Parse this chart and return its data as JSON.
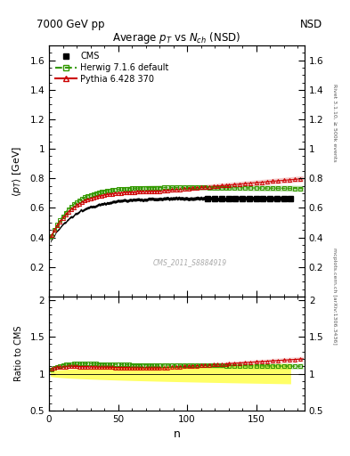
{
  "title_top_left": "7000 GeV pp",
  "title_top_right": "NSD",
  "main_title": "Average p$_T$ vs N$_{ch}$ (NSD)",
  "xlabel": "n",
  "ylabel_main": "⟨p$_T$⟩ [GeV]",
  "ylabel_ratio": "Ratio to CMS",
  "right_label_top": "Rivet 3.1.10, ≥ 500k events",
  "right_label_bottom": "mcplots.cern.ch [arXiv:1306.3436]",
  "watermark": "CMS_2011_S8884919",
  "ylim_main": [
    0.0,
    1.7
  ],
  "ylim_ratio": [
    0.5,
    2.05
  ],
  "xlim": [
    0,
    185
  ],
  "cms_color": "#000000",
  "herwig_color": "#339900",
  "pythia_color": "#cc0000",
  "cms_label": "CMS",
  "herwig_label": "Herwig 7.1.6 default",
  "pythia_label": "Pythia 6.428 370",
  "yticks_main": [
    0.2,
    0.4,
    0.6,
    0.8,
    1.0,
    1.2,
    1.4,
    1.6
  ],
  "yticks_ratio": [
    0.5,
    1.0,
    1.5,
    2.0
  ]
}
